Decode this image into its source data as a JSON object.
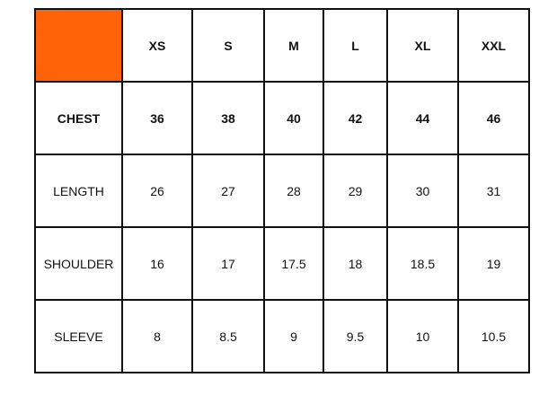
{
  "accent_color": "#ff6207",
  "sizes": [
    "XS",
    "S",
    "M",
    "L",
    "XL",
    "XXL"
  ],
  "rows": [
    {
      "label": "CHEST",
      "bold": true,
      "values": [
        "36",
        "38",
        "40",
        "42",
        "44",
        "46"
      ]
    },
    {
      "label": "LENGTH",
      "bold": false,
      "values": [
        "26",
        "27",
        "28",
        "29",
        "30",
        "31"
      ]
    },
    {
      "label": "SHOULDER",
      "bold": false,
      "values": [
        "16",
        "17",
        "17.5",
        "18",
        "18.5",
        "19"
      ]
    },
    {
      "label": "SLEEVE",
      "bold": false,
      "values": [
        "8",
        "8.5",
        "9",
        "9.5",
        "10",
        "10.5"
      ]
    }
  ]
}
